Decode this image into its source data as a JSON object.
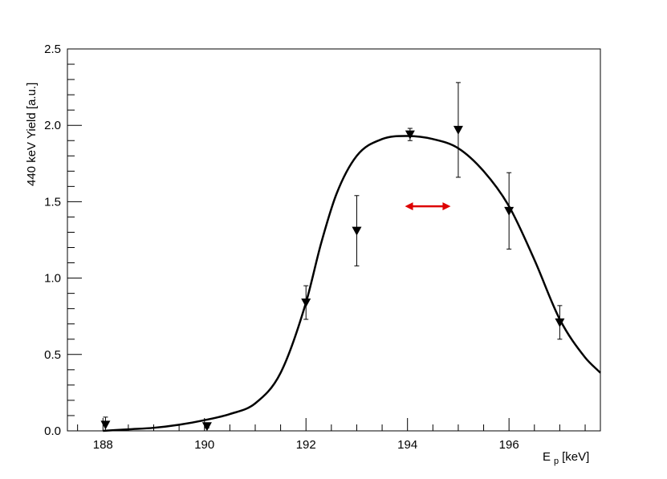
{
  "chart_data": {
    "type": "scatter",
    "xlabel": "E p [keV]",
    "ylabel": "440 keV Yield [a.u.]",
    "xlim": [
      187.3,
      197.8
    ],
    "ylim": [
      0,
      2.5
    ],
    "x_ticks": [
      188,
      190,
      192,
      194,
      196
    ],
    "x_tick_labels": [
      "188",
      "190",
      "192",
      "194",
      "196"
    ],
    "y_ticks": [
      0,
      0.5,
      1.0,
      1.5,
      2.0,
      2.5
    ],
    "y_tick_labels": [
      "0.0",
      "0.5",
      "1.0",
      "1.5",
      "2.0",
      "2.5"
    ],
    "series": [
      {
        "kind": "points_with_errors",
        "marker": "down-triangle",
        "color": "#000000",
        "x": [
          188.05,
          190.05,
          192.0,
          193.0,
          194.05,
          195.0,
          196.0,
          197.0
        ],
        "y": [
          0.04,
          0.03,
          0.84,
          1.31,
          1.94,
          1.97,
          1.44,
          0.71
        ],
        "yerr": [
          0.05,
          0.01,
          0.11,
          0.23,
          0.04,
          0.31,
          0.25,
          0.11
        ]
      },
      {
        "kind": "fit_curve",
        "color": "#000000",
        "x": [
          188.0,
          188.5,
          189.0,
          189.5,
          190.0,
          190.5,
          191.0,
          191.5,
          192.0,
          192.3,
          192.6,
          193.0,
          193.5,
          194.0,
          194.5,
          195.0,
          195.5,
          196.0,
          196.5,
          197.0,
          197.5,
          197.8
        ],
        "y": [
          0.0,
          0.01,
          0.02,
          0.04,
          0.07,
          0.11,
          0.18,
          0.38,
          0.84,
          1.23,
          1.55,
          1.8,
          1.91,
          1.93,
          1.91,
          1.85,
          1.7,
          1.47,
          1.12,
          0.73,
          0.48,
          0.38
        ]
      }
    ],
    "annotation": {
      "type": "double-arrow",
      "color": "#dd0000",
      "x": [
        193.95,
        194.85
      ],
      "y": 1.47
    },
    "grid": false
  }
}
